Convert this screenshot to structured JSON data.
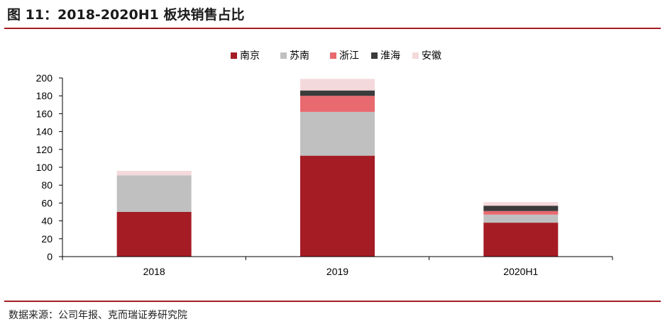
{
  "title": "图 11：2018-2020H1 板块销售占比",
  "source": "数据来源：公司年报、克而瑞证券研究院",
  "colors": {
    "accent": "#a51c24",
    "series": [
      "#a51c24",
      "#c0c0c0",
      "#e8696e",
      "#3b3b3b",
      "#f4d9dc"
    ]
  },
  "chart_data": {
    "type": "bar",
    "stacked": true,
    "categories": [
      "2018",
      "2019",
      "2020H1"
    ],
    "series": [
      {
        "name": "南京",
        "values": [
          50,
          113,
          38
        ]
      },
      {
        "name": "苏南",
        "values": [
          41,
          49,
          9
        ]
      },
      {
        "name": "浙江",
        "values": [
          0,
          18,
          4
        ]
      },
      {
        "name": "淮海",
        "values": [
          0,
          6,
          6
        ]
      },
      {
        "name": "安徽",
        "values": [
          5,
          13,
          4
        ]
      }
    ],
    "yticks": [
      "0",
      "20",
      "40",
      "60",
      "80",
      "100",
      "120",
      "140",
      "160",
      "180",
      "200"
    ],
    "ylim": [
      0,
      200
    ],
    "legend_position": "top",
    "grid": false
  }
}
